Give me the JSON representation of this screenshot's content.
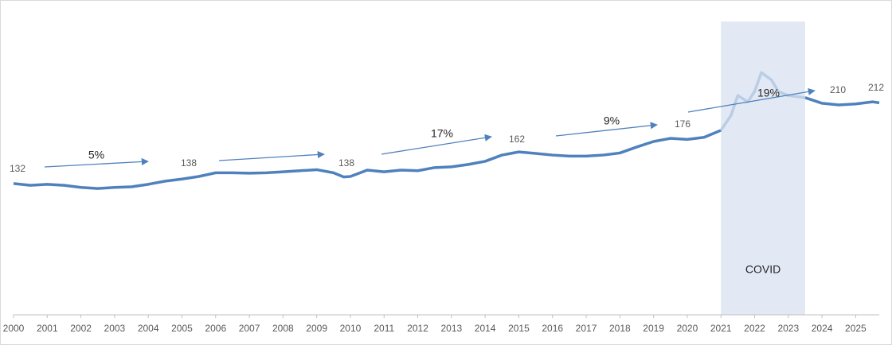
{
  "chart_data": {
    "type": "line",
    "x": [
      2000,
      2000.5,
      2001,
      2001.5,
      2002,
      2002.5,
      2003,
      2003.5,
      2004,
      2004.5,
      2005,
      2005.5,
      2006,
      2006.5,
      2007,
      2007.5,
      2008,
      2008.5,
      2009,
      2009.5,
      2009.8,
      2010,
      2010.5,
      2011,
      2011.5,
      2012,
      2012.5,
      2013,
      2013.5,
      2014,
      2014.5,
      2015,
      2015.5,
      2016,
      2016.5,
      2017,
      2017.5,
      2018,
      2018.5,
      2019,
      2019.5,
      2020,
      2020.5,
      2021,
      2021.3,
      2021.5,
      2021.8,
      2022,
      2022.2,
      2022.5,
      2022.7,
      2023,
      2023.5,
      2024,
      2024.5,
      2025,
      2025.5,
      2025.7
    ],
    "series": [
      {
        "color": "#4f81bd",
        "values": [
          125.7,
          124,
          125,
          124,
          122,
          121,
          122,
          122.6,
          125,
          128,
          130,
          132.5,
          136,
          136,
          135.6,
          136,
          137,
          138,
          139,
          136,
          132,
          132.5,
          138.6,
          137,
          138.6,
          138,
          141,
          141.7,
          144,
          147,
          153,
          156,
          154.6,
          153,
          152,
          152,
          153,
          155,
          160.7,
          166,
          169,
          168,
          170,
          176.7,
          null,
          null,
          null,
          null,
          null,
          null,
          null,
          null,
          208,
          202.6,
          201,
          202,
          204,
          203
        ]
      },
      {
        "color": "#b9cde5",
        "values": [
          null,
          null,
          null,
          null,
          null,
          null,
          null,
          null,
          null,
          null,
          null,
          null,
          null,
          null,
          null,
          null,
          null,
          null,
          null,
          null,
          null,
          null,
          null,
          null,
          null,
          null,
          null,
          null,
          null,
          null,
          null,
          null,
          null,
          null,
          null,
          null,
          null,
          null,
          null,
          null,
          null,
          null,
          null,
          176.7,
          191,
          210,
          204,
          214,
          232,
          225,
          214,
          210,
          208,
          null,
          null,
          null,
          null,
          null
        ]
      }
    ],
    "xlim": [
      2000,
      2025.7
    ],
    "ylim": [
      0,
      300
    ],
    "xticks": [
      2000,
      2001,
      2002,
      2003,
      2004,
      2005,
      2006,
      2007,
      2008,
      2009,
      2010,
      2011,
      2012,
      2013,
      2014,
      2015,
      2016,
      2017,
      2018,
      2019,
      2020,
      2021,
      2022,
      2023,
      2024,
      2025
    ],
    "shade": {
      "x": [
        2021,
        2023.5
      ],
      "label": "COVID",
      "color": "#e2e9f5"
    },
    "levels": [
      132,
      138,
      138,
      162,
      176,
      210,
      212
    ],
    "growth": [
      "5%",
      "17%",
      "9%",
      "19%"
    ]
  }
}
